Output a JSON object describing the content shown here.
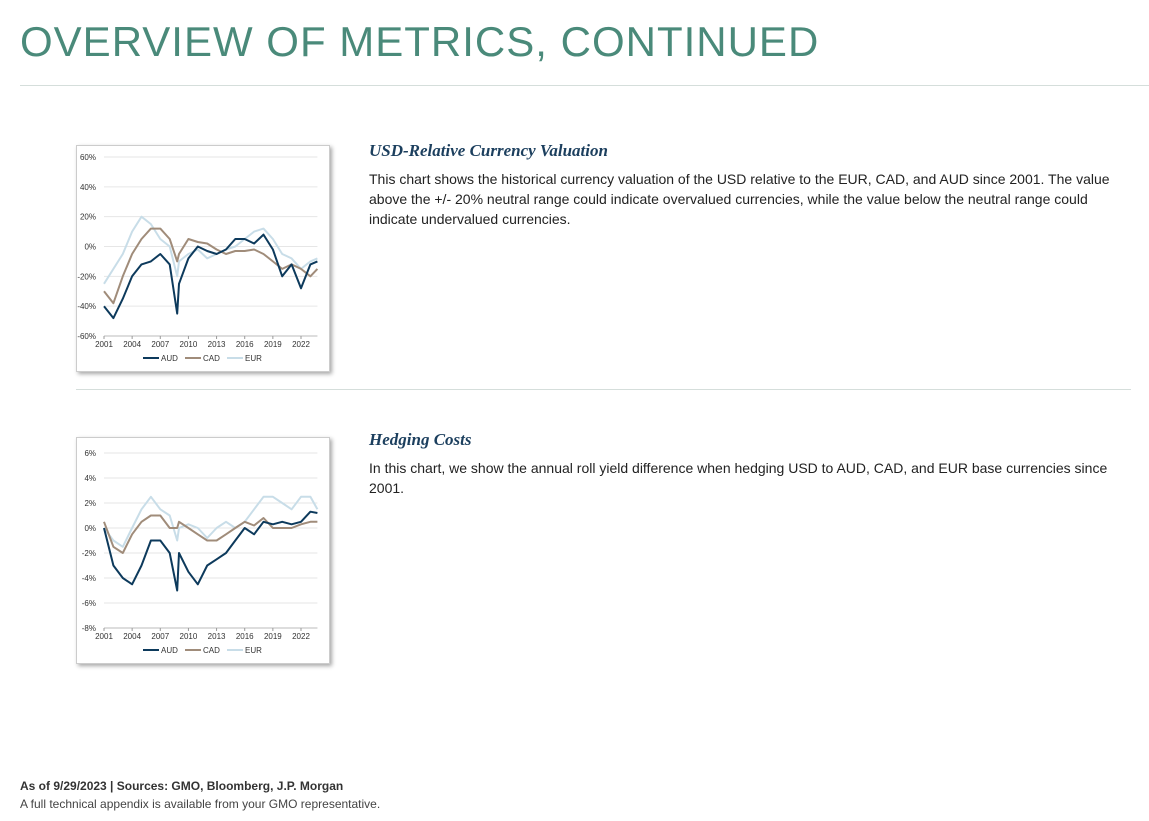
{
  "title": "OVERVIEW OF METRICS, CONTINUED",
  "sections": [
    {
      "heading": "USD-Relative Currency Valuation",
      "text": "This chart shows the historical currency valuation of the USD relative to the EUR, CAD, and AUD since 2001. The value above the +/- 20% neutral range could indicate overvalued currencies, while the value below the neutral range could indicate undervalued currencies.",
      "chart": {
        "type": "line",
        "x": [
          2001,
          2002,
          2003,
          2004,
          2005,
          2006,
          2007,
          2008,
          2008.8,
          2009,
          2010,
          2011,
          2012,
          2013,
          2014,
          2015,
          2016,
          2017,
          2018,
          2019,
          2020,
          2021,
          2022,
          2023,
          2023.75
        ],
        "series": [
          {
            "name": "AUD",
            "color": "#0d3a5c",
            "values": [
              -40,
              -48,
              -35,
              -20,
              -12,
              -10,
              -5,
              -12,
              -45,
              -25,
              -8,
              0,
              -3,
              -5,
              -2,
              5,
              5,
              2,
              8,
              -2,
              -20,
              -12,
              -28,
              -12,
              -10
            ]
          },
          {
            "name": "CAD",
            "color": "#a08c7a",
            "values": [
              -30,
              -38,
              -20,
              -5,
              5,
              12,
              12,
              5,
              -10,
              -5,
              5,
              3,
              2,
              -2,
              -5,
              -3,
              -3,
              -2,
              -5,
              -10,
              -15,
              -12,
              -15,
              -20,
              -15
            ]
          },
          {
            "name": "EUR",
            "color": "#c8dde8",
            "values": [
              -25,
              -15,
              -5,
              10,
              20,
              15,
              5,
              0,
              -20,
              -10,
              -5,
              -2,
              -8,
              -5,
              -2,
              0,
              5,
              10,
              12,
              5,
              -5,
              -8,
              -15,
              -10,
              -8
            ]
          }
        ],
        "xlim": [
          2001,
          2023.75
        ],
        "xticks": [
          2001,
          2004,
          2007,
          2010,
          2013,
          2016,
          2019,
          2022
        ],
        "ylim": [
          -60,
          60
        ],
        "yticks": [
          {
            "value": -60,
            "label": "-60%"
          },
          {
            "value": -40,
            "label": "-40%"
          },
          {
            "value": -20,
            "label": "-20%"
          },
          {
            "value": 0,
            "label": "0%"
          },
          {
            "value": 20,
            "label": "20%"
          },
          {
            "value": 40,
            "label": "40%"
          },
          {
            "value": 60,
            "label": "60%"
          }
        ],
        "grid": true
      }
    },
    {
      "heading": "Hedging Costs",
      "text": "In this chart, we show the annual roll yield difference when hedging USD to AUD, CAD, and EUR base currencies since 2001.",
      "chart": {
        "type": "line",
        "x": [
          2001,
          2002,
          2003,
          2004,
          2005,
          2006,
          2007,
          2008,
          2008.8,
          2009,
          2010,
          2011,
          2012,
          2013,
          2014,
          2015,
          2016,
          2017,
          2018,
          2019,
          2020,
          2021,
          2022,
          2023,
          2023.75
        ],
        "series": [
          {
            "name": "AUD",
            "color": "#0d3a5c",
            "values": [
              0,
              -3,
              -4,
              -4.5,
              -3,
              -1,
              -1,
              -2,
              -5,
              -2,
              -3.5,
              -4.5,
              -3,
              -2.5,
              -2,
              -1,
              0,
              -0.5,
              0.5,
              0.3,
              0.5,
              0.3,
              0.5,
              1.3,
              1.2
            ]
          },
          {
            "name": "CAD",
            "color": "#a08c7a",
            "values": [
              0.5,
              -1.5,
              -2,
              -0.5,
              0.5,
              1,
              1,
              0,
              0,
              0.5,
              0,
              -0.5,
              -1,
              -1,
              -0.5,
              0,
              0.5,
              0.2,
              0.8,
              0,
              0,
              0,
              0.3,
              0.5,
              0.5
            ]
          },
          {
            "name": "EUR",
            "color": "#c8dde8",
            "values": [
              0,
              -1,
              -1.5,
              0,
              1.5,
              2.5,
              1.5,
              1,
              -1,
              0,
              0.3,
              0,
              -0.8,
              0,
              0.5,
              0,
              0.5,
              1.5,
              2.5,
              2.5,
              2,
              1.5,
              2.5,
              2.5,
              1.5
            ]
          }
        ],
        "xlim": [
          2001,
          2023.75
        ],
        "xticks": [
          2001,
          2004,
          2007,
          2010,
          2013,
          2016,
          2019,
          2022
        ],
        "ylim": [
          -8,
          6
        ],
        "yticks": [
          {
            "value": -8,
            "label": "-8%"
          },
          {
            "value": -6,
            "label": "-6%"
          },
          {
            "value": -4,
            "label": "-4%"
          },
          {
            "value": -2,
            "label": "-2%"
          },
          {
            "value": 0,
            "label": "0%"
          },
          {
            "value": 2,
            "label": "2%"
          },
          {
            "value": 4,
            "label": "4%"
          },
          {
            "value": 6,
            "label": "6%"
          }
        ],
        "grid": true
      }
    }
  ],
  "footer": {
    "source": "As of 9/29/2023 | Sources: GMO, Bloomberg, J.P. Morgan",
    "note": "A full technical appendix is available from your GMO representative."
  }
}
